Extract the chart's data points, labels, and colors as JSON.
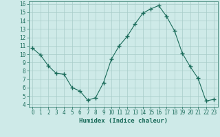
{
  "x": [
    0,
    1,
    2,
    3,
    4,
    5,
    6,
    7,
    8,
    9,
    10,
    11,
    12,
    13,
    14,
    15,
    16,
    17,
    18,
    19,
    20,
    21,
    22,
    23
  ],
  "y": [
    10.7,
    9.9,
    8.6,
    7.7,
    7.6,
    6.0,
    5.6,
    4.5,
    4.8,
    6.6,
    9.4,
    11.0,
    12.1,
    13.6,
    14.9,
    15.4,
    15.8,
    14.5,
    12.8,
    10.1,
    8.5,
    7.1,
    4.4,
    4.6
  ],
  "line_color": "#1a6b5a",
  "marker": "+",
  "marker_size": 4,
  "bg_color": "#ceeae8",
  "grid_color": "#a8ccc9",
  "xlabel": "Humidex (Indice chaleur)",
  "ylim": [
    4,
    16
  ],
  "xlim": [
    -0.5,
    23.5
  ],
  "yticks": [
    4,
    5,
    6,
    7,
    8,
    9,
    10,
    11,
    12,
    13,
    14,
    15,
    16
  ],
  "xticks": [
    0,
    1,
    2,
    3,
    4,
    5,
    6,
    7,
    8,
    9,
    10,
    11,
    12,
    13,
    14,
    15,
    16,
    17,
    18,
    19,
    20,
    21,
    22,
    23
  ],
  "label_fontsize": 6.5,
  "tick_fontsize": 5.5
}
